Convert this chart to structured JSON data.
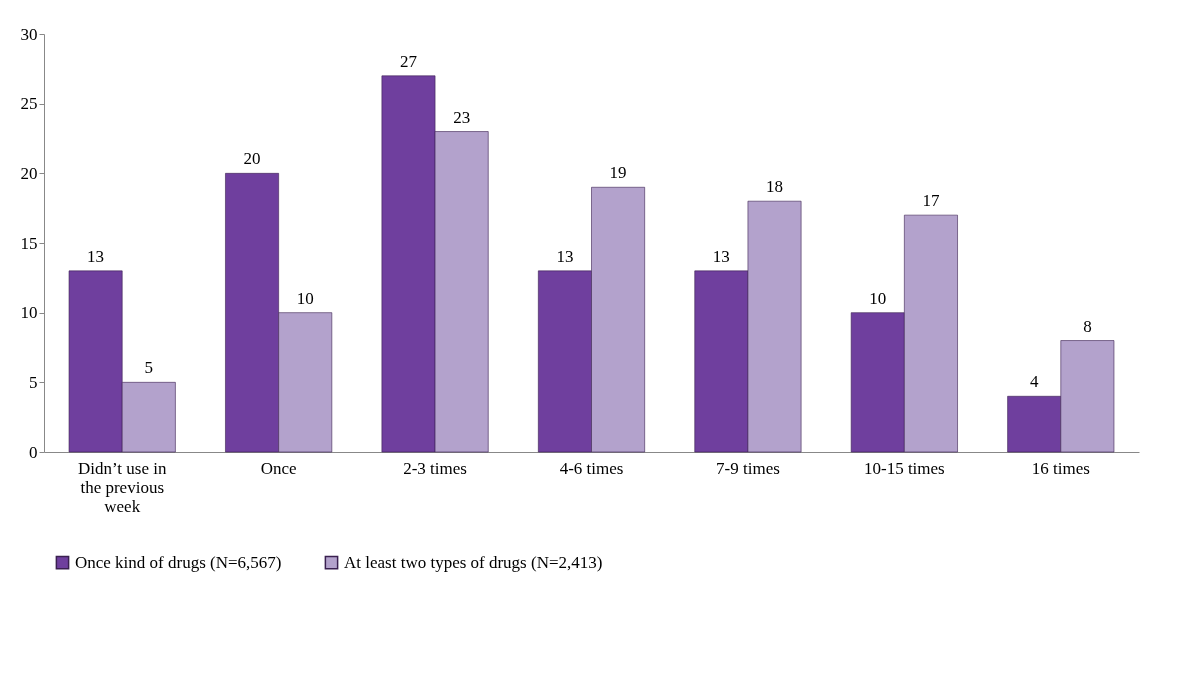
{
  "chart_data": {
    "type": "bar",
    "categories": [
      "Didn’t use in the previous week",
      "Once",
      "2-3 times",
      "4-6 times",
      "7-9 times",
      "10-15 times",
      "16 times"
    ],
    "series": [
      {
        "name": "Once kind of drugs (N=6,567)",
        "color": "#6f3f9e",
        "values": [
          13,
          20,
          27,
          13,
          13,
          10,
          4
        ]
      },
      {
        "name": "At least two types of drugs (N=2,413)",
        "color": "#b3a2cc",
        "values": [
          5,
          10,
          23,
          19,
          18,
          17,
          8
        ]
      }
    ],
    "ylim": [
      0,
      30
    ],
    "yticks": [
      0,
      5,
      10,
      15,
      20,
      25,
      30
    ],
    "grid": false,
    "legend": "bottom",
    "data_labels": true
  }
}
